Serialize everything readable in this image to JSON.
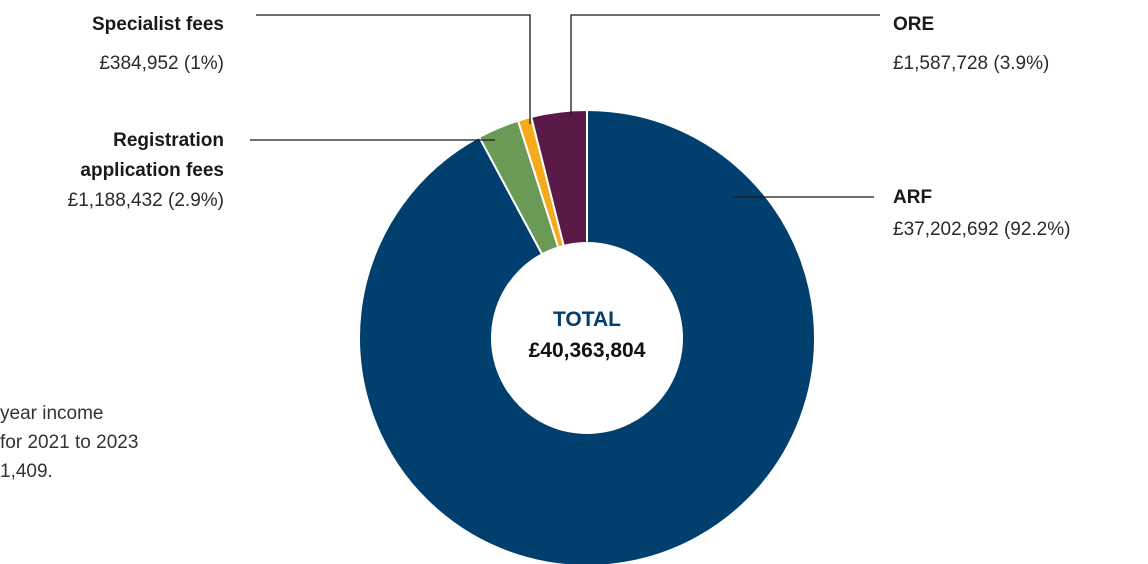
{
  "chart_data": {
    "type": "pie",
    "title": "",
    "center_label": {
      "title": "TOTAL",
      "total": "£40,363,804"
    },
    "slices": [
      {
        "name": "ARF",
        "value": 37202692,
        "value_label": "£37,202,692 (92.2%)",
        "percent": 92.2,
        "color": "#003f6e"
      },
      {
        "name": "Registration application fees",
        "name_lines": [
          "Registration",
          "application fees"
        ],
        "value": 1188432,
        "value_label": "£1,188,432 (2.9%)",
        "percent": 2.9,
        "color": "#6a9a55"
      },
      {
        "name": "Specialist fees",
        "value": 384952,
        "value_label": "£384,952 (1%)",
        "percent": 1.0,
        "color": "#f5aa1c"
      },
      {
        "name": "ORE",
        "value": 1587728,
        "value_label": "£1,587,728 (3.9%)",
        "percent": 3.9,
        "color": "#5a1a48"
      }
    ]
  },
  "side_note": {
    "lines": [
      "year income",
      "for 2021 to 2023",
      "1,409."
    ]
  },
  "colors": {
    "center_title": "#003f6e",
    "leader_line": "#1a1a1a"
  }
}
